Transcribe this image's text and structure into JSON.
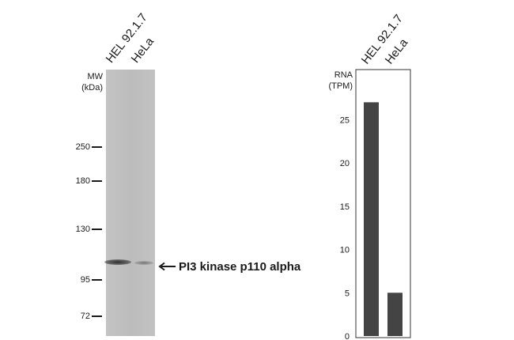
{
  "blot": {
    "lanes": [
      "HEL 92.1.7",
      "HeLa"
    ],
    "mw_title": [
      "MW",
      "(kDa)"
    ],
    "markers": [
      "250",
      "180",
      "130",
      "95",
      "72"
    ],
    "target_label": "PI3 kinase p110 alpha",
    "band_intensity": [
      0.85,
      0.3
    ]
  },
  "rna": {
    "title": [
      "RNA",
      "(TPM)"
    ]
  },
  "chart_data": {
    "type": "bar",
    "categories": [
      "HEL 92.1.7",
      "HeLa"
    ],
    "values": [
      27,
      5
    ],
    "ylabel": "RNA (TPM)",
    "ylim": [
      0,
      30
    ],
    "yticks": [
      0,
      5,
      10,
      15,
      20,
      25
    ],
    "bar_color": "#444444",
    "grid": false
  }
}
